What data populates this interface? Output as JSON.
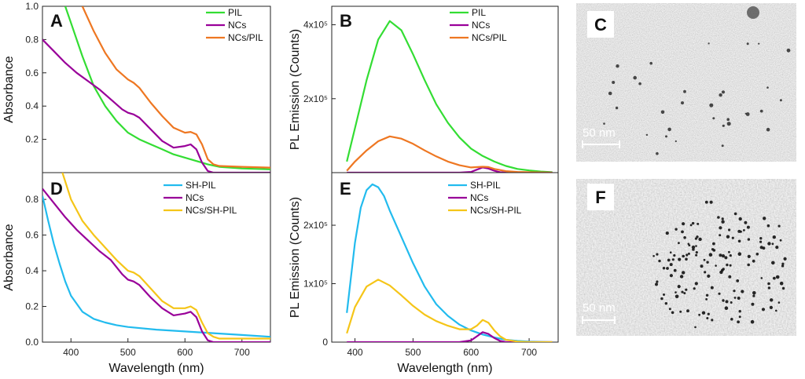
{
  "colors": {
    "green": "#33dd33",
    "purple": "#990099",
    "orange": "#ee7722",
    "cyan": "#22bbee",
    "yellow": "#f5c518",
    "tem_bg_top": "#8a8a8a",
    "tem_bg_bottom": "#909090"
  },
  "chart_data": [
    {
      "type": "line",
      "panel": "A",
      "ylabel": "Absorbance",
      "xlim": [
        350,
        750
      ],
      "ylim": [
        0,
        1.0
      ],
      "x_ticks": [],
      "y_ticks": [
        0.2,
        0.4,
        0.6,
        0.8,
        1.0
      ],
      "y_tick_labels": [
        "0.2",
        "0.4",
        "0.6",
        "0.8",
        "1.0"
      ],
      "series": [
        {
          "name": "PIL",
          "color_key": "green",
          "x": [
            390,
            400,
            420,
            440,
            460,
            480,
            500,
            520,
            540,
            560,
            580,
            600,
            620,
            640,
            660,
            680,
            700,
            750
          ],
          "y": [
            1.0,
            0.9,
            0.7,
            0.52,
            0.4,
            0.31,
            0.24,
            0.2,
            0.17,
            0.14,
            0.11,
            0.09,
            0.07,
            0.05,
            0.035,
            0.03,
            0.025,
            0.02
          ]
        },
        {
          "name": "NCs",
          "color_key": "purple",
          "x": [
            350,
            370,
            390,
            410,
            430,
            450,
            470,
            490,
            500,
            510,
            520,
            540,
            560,
            580,
            600,
            610,
            620,
            630,
            640,
            650,
            660,
            700,
            750
          ],
          "y": [
            0.8,
            0.73,
            0.66,
            0.6,
            0.55,
            0.5,
            0.44,
            0.38,
            0.36,
            0.35,
            0.33,
            0.26,
            0.19,
            0.15,
            0.16,
            0.17,
            0.14,
            0.06,
            0.01,
            0.0,
            0.0,
            0.0,
            0.0
          ]
        },
        {
          "name": "NCs/PIL",
          "color_key": "orange",
          "x": [
            420,
            440,
            460,
            480,
            500,
            510,
            520,
            540,
            560,
            580,
            600,
            610,
            620,
            630,
            640,
            650,
            660,
            700,
            750
          ],
          "y": [
            1.0,
            0.85,
            0.72,
            0.62,
            0.56,
            0.54,
            0.51,
            0.42,
            0.34,
            0.27,
            0.24,
            0.245,
            0.23,
            0.17,
            0.08,
            0.05,
            0.04,
            0.035,
            0.03
          ]
        }
      ]
    },
    {
      "type": "line",
      "panel": "B",
      "ylabel": "PL Emission (Counts)",
      "xlim": [
        360,
        750
      ],
      "ylim": [
        0,
        450000
      ],
      "x_ticks": [],
      "y_ticks": [
        200000,
        400000
      ],
      "y_tick_labels": [
        "2x10⁵",
        "4x10⁵"
      ],
      "series": [
        {
          "name": "PIL",
          "color_key": "green",
          "x": [
            386,
            400,
            420,
            440,
            460,
            480,
            500,
            520,
            540,
            560,
            580,
            600,
            620,
            640,
            660,
            680,
            700,
            720,
            740
          ],
          "y": [
            30000,
            120000,
            250000,
            360000,
            410000,
            385000,
            320000,
            250000,
            185000,
            135000,
            95000,
            65000,
            45000,
            30000,
            18000,
            10000,
            6000,
            3000,
            1000
          ]
        },
        {
          "name": "NCs",
          "color_key": "purple",
          "x": [
            386,
            500,
            580,
            600,
            610,
            620,
            630,
            640,
            650,
            660,
            740
          ],
          "y": [
            0,
            0,
            0,
            2000,
            8000,
            14000,
            11000,
            5000,
            1000,
            0,
            0
          ]
        },
        {
          "name": "NCs/PIL",
          "color_key": "orange",
          "x": [
            386,
            400,
            420,
            440,
            460,
            480,
            500,
            520,
            540,
            560,
            580,
            600,
            620,
            630,
            640,
            660,
            680,
            700,
            740
          ],
          "y": [
            5000,
            30000,
            60000,
            85000,
            98000,
            92000,
            78000,
            60000,
            44000,
            30000,
            20000,
            14000,
            16000,
            15000,
            10000,
            4000,
            2000,
            1000,
            0
          ]
        }
      ]
    },
    {
      "type": "line",
      "panel": "D",
      "ylabel": "Absorbance",
      "xlabel": "Wavelength (nm)",
      "xlim": [
        350,
        750
      ],
      "ylim": [
        0,
        0.95
      ],
      "x_ticks": [
        400,
        500,
        600,
        700
      ],
      "x_tick_labels": [
        "400",
        "500",
        "600",
        "700"
      ],
      "y_ticks": [
        0.0,
        0.2,
        0.4,
        0.6,
        0.8
      ],
      "y_tick_labels": [
        "0.0",
        "0.2",
        "0.4",
        "0.6",
        "0.8"
      ],
      "series": [
        {
          "name": "SH-PIL",
          "color_key": "cyan",
          "x": [
            350,
            360,
            370,
            380,
            390,
            400,
            420,
            440,
            460,
            480,
            500,
            550,
            600,
            650,
            700,
            750
          ],
          "y": [
            0.82,
            0.68,
            0.55,
            0.44,
            0.34,
            0.26,
            0.17,
            0.13,
            0.11,
            0.095,
            0.085,
            0.07,
            0.06,
            0.05,
            0.04,
            0.03
          ]
        },
        {
          "name": "NCs",
          "color_key": "purple",
          "x": [
            350,
            370,
            390,
            410,
            430,
            450,
            470,
            490,
            500,
            510,
            520,
            540,
            560,
            580,
            600,
            610,
            620,
            630,
            640,
            650,
            660,
            700,
            750
          ],
          "y": [
            0.86,
            0.78,
            0.7,
            0.63,
            0.57,
            0.51,
            0.46,
            0.38,
            0.35,
            0.34,
            0.32,
            0.25,
            0.19,
            0.15,
            0.16,
            0.17,
            0.14,
            0.06,
            0.01,
            0.0,
            0.0,
            0.0,
            0.0
          ]
        },
        {
          "name": "NCs/SH-PIL",
          "color_key": "yellow",
          "x": [
            385,
            400,
            420,
            440,
            460,
            480,
            500,
            510,
            520,
            540,
            560,
            580,
            600,
            610,
            620,
            630,
            640,
            650,
            660,
            700,
            750
          ],
          "y": [
            0.95,
            0.8,
            0.68,
            0.6,
            0.53,
            0.46,
            0.4,
            0.39,
            0.37,
            0.3,
            0.23,
            0.19,
            0.19,
            0.2,
            0.18,
            0.11,
            0.05,
            0.03,
            0.02,
            0.02,
            0.02
          ]
        }
      ]
    },
    {
      "type": "line",
      "panel": "E",
      "ylabel": "PL Emission (Counts)",
      "xlabel": "Wavelength (nm)",
      "xlim": [
        360,
        750
      ],
      "ylim": [
        0,
        290000
      ],
      "x_ticks": [
        400,
        500,
        600,
        700
      ],
      "x_tick_labels": [
        "400",
        "500",
        "600",
        "700"
      ],
      "y_ticks": [
        0,
        100000,
        200000
      ],
      "y_tick_labels": [
        "0",
        "1x10⁵",
        "2x10⁵"
      ],
      "series": [
        {
          "name": "SH-PIL",
          "color_key": "cyan",
          "x": [
            386,
            400,
            410,
            420,
            430,
            440,
            450,
            460,
            480,
            500,
            520,
            540,
            560,
            580,
            600,
            620,
            640,
            660,
            680,
            700,
            740
          ],
          "y": [
            50000,
            170000,
            230000,
            260000,
            270000,
            265000,
            250000,
            225000,
            180000,
            135000,
            95000,
            65000,
            45000,
            30000,
            20000,
            13000,
            8000,
            4000,
            2000,
            1000,
            0
          ]
        },
        {
          "name": "NCs",
          "color_key": "purple",
          "x": [
            386,
            500,
            580,
            600,
            610,
            620,
            630,
            640,
            650,
            660,
            740
          ],
          "y": [
            0,
            0,
            0,
            3000,
            10000,
            17000,
            14000,
            7000,
            2000,
            0,
            0
          ]
        },
        {
          "name": "NCs/SH-PIL",
          "color_key": "yellow",
          "x": [
            386,
            400,
            420,
            440,
            460,
            480,
            500,
            520,
            540,
            560,
            580,
            600,
            610,
            620,
            630,
            640,
            650,
            660,
            680,
            700,
            740
          ],
          "y": [
            15000,
            60000,
            95000,
            107000,
            97000,
            80000,
            62000,
            47000,
            36000,
            28000,
            22000,
            22000,
            28000,
            38000,
            33000,
            20000,
            10000,
            4000,
            1000,
            0,
            0
          ]
        }
      ]
    }
  ],
  "tem_panels": [
    {
      "letter": "C",
      "scale_label": "50 nm"
    },
    {
      "letter": "F",
      "scale_label": "50 nm"
    }
  ]
}
